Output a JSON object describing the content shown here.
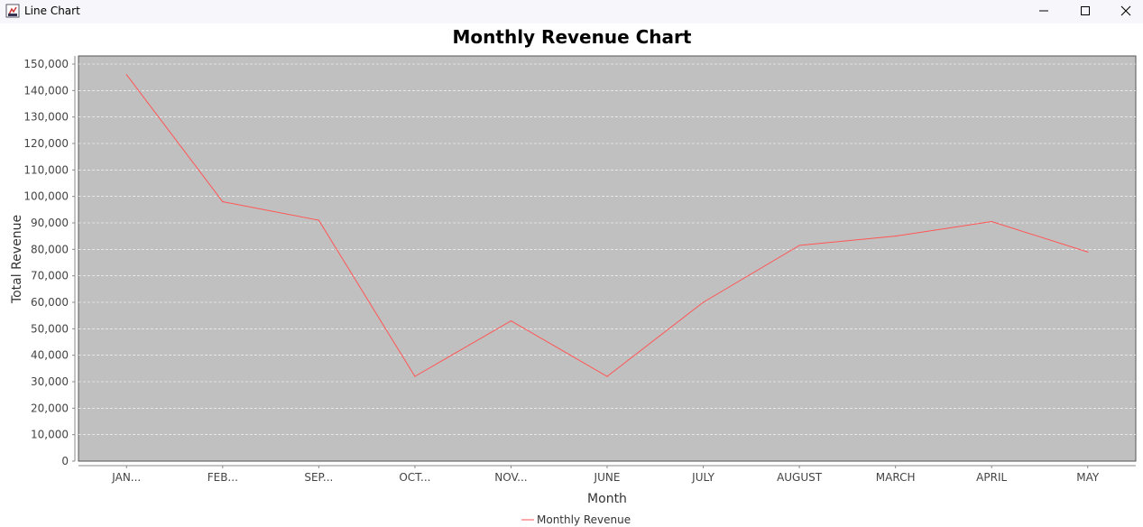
{
  "window": {
    "title": "Line Chart",
    "icon": "java-cup-icon",
    "controls": [
      "minimize-icon",
      "maximize-icon",
      "close-icon"
    ]
  },
  "chart_data": {
    "type": "line",
    "title": "Monthly Revenue Chart",
    "xlabel": "Month",
    "ylabel": "Total Revenue",
    "categories": [
      "JAN...",
      "FEB...",
      "SEP...",
      "OCT...",
      "NOV...",
      "JUNE",
      "JULY",
      "AUGUST",
      "MARCH",
      "APRIL",
      "MAY"
    ],
    "series": [
      {
        "name": "Monthly Revenue",
        "color": "#ff5555",
        "values": [
          146000,
          98000,
          91000,
          32000,
          53000,
          32000,
          60000,
          81500,
          85000,
          90500,
          79000
        ]
      }
    ],
    "ylim": [
      0,
      150000
    ],
    "yticks": [
      0,
      10000,
      20000,
      30000,
      40000,
      50000,
      60000,
      70000,
      80000,
      90000,
      100000,
      110000,
      120000,
      130000,
      140000,
      150000
    ],
    "ytick_labels": [
      "0",
      "10,000",
      "20,000",
      "30,000",
      "40,000",
      "50,000",
      "60,000",
      "70,000",
      "80,000",
      "90,000",
      "100,000",
      "110,000",
      "120,000",
      "130,000",
      "140,000",
      "150,000"
    ],
    "grid": true,
    "plot_background": "#c0c0c0",
    "grid_color": "#ffffff",
    "legend_position": "bottom-center"
  }
}
